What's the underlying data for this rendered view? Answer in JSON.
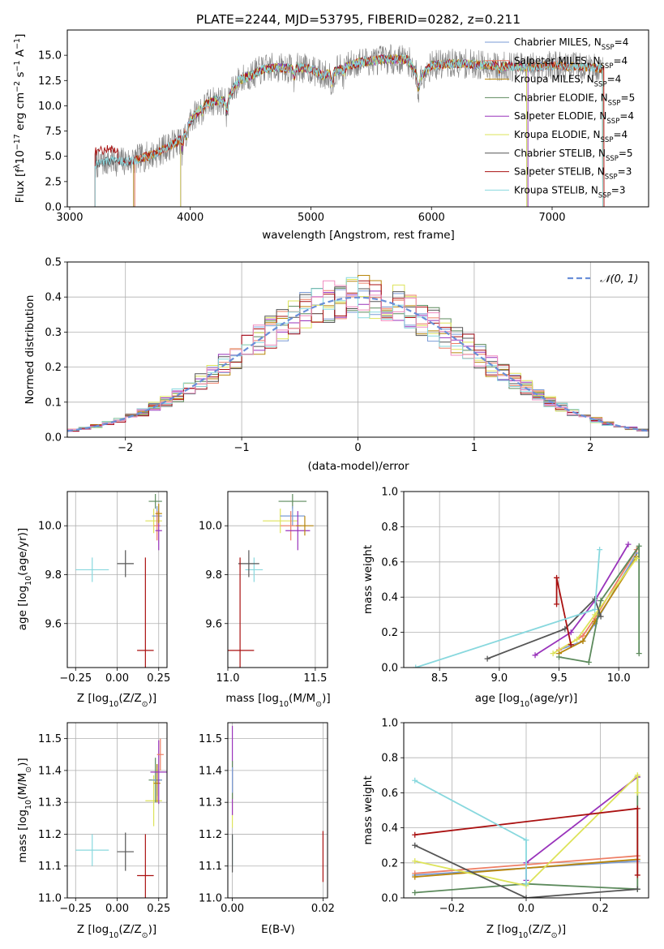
{
  "figure_title": "PLATE=2244, MJD=53795, FIBERID=0282, z=0.211",
  "models": [
    {
      "label": "Chabrier MILES, N",
      "n": "4",
      "color": "#7a9bd6"
    },
    {
      "label": "Salpeter MILES, N",
      "n": "4",
      "color": "#ee7f66"
    },
    {
      "label": "Kroupa MILES, N",
      "n": "4",
      "color": "#b8860b"
    },
    {
      "label": "Chabrier ELODIE, N",
      "n": "5",
      "color": "#5c8a5c"
    },
    {
      "label": "Salpeter ELODIE, N",
      "n": "4",
      "color": "#9933bb"
    },
    {
      "label": "Kroupa ELODIE, N",
      "n": "4",
      "color": "#dde35a"
    },
    {
      "label": "Chabrier STELIB, N",
      "n": "5",
      "color": "#555555"
    },
    {
      "label": "Salpeter STELIB, N",
      "n": "3",
      "color": "#aa1111"
    },
    {
      "label": "Kroupa STELIB, N",
      "n": "3",
      "color": "#88d8de"
    }
  ],
  "legend_subscript": "SSP",
  "chart_data": [
    {
      "type": "line",
      "xlabel": "wavelength [Angstrom, rest frame]",
      "ylabel": "Flux [f",
      "ylabel_parts": [
        "Flux [f",
        "λ",
        "10",
        "−17",
        " erg cm",
        "−2",
        " s",
        "−1",
        " A",
        "−1",
        "]"
      ],
      "xlim": [
        2980,
        7800
      ],
      "ylim": [
        0,
        17.5
      ],
      "xticks": [
        "3000",
        "4000",
        "5000",
        "6000",
        "7000"
      ],
      "yticks": [
        "0.0",
        "2.5",
        "5.0",
        "7.5",
        "10.0",
        "12.5",
        "15.0"
      ],
      "anchors_x": [
        3200,
        3300,
        3500,
        3700,
        3900,
        4000,
        4100,
        4200,
        4300,
        4400,
        4500,
        4600,
        4700,
        4800,
        4900,
        5000,
        5100,
        5200,
        5300,
        5400,
        5600,
        5800,
        5900,
        6000,
        6200,
        6500,
        6800,
        7000,
        7300,
        7600
      ],
      "anchors_y": [
        4.2,
        4.5,
        4.5,
        5.2,
        6.5,
        8.5,
        10.0,
        10.5,
        10.5,
        12.5,
        13.0,
        13.6,
        13.8,
        13.7,
        13.8,
        13.6,
        13.0,
        13.4,
        13.9,
        14.3,
        14.6,
        14.6,
        12.8,
        14.0,
        14.2,
        14.0,
        13.8,
        14.0,
        13.8,
        13.5
      ]
    },
    {
      "type": "line",
      "xlabel": "(data-model)/error",
      "ylabel": "Normed distribution",
      "xlim": [
        -2.5,
        2.5
      ],
      "ylim": [
        0,
        0.5
      ],
      "xticks": [
        "−2",
        "−1",
        "0",
        "1",
        "2"
      ],
      "yticks": [
        "0.0",
        "0.1",
        "0.2",
        "0.3",
        "0.4",
        "0.5"
      ],
      "legend": "𝒩(0, 1)",
      "bin_width": 0.1
    },
    {
      "type": "scatter",
      "xlabel": "Z [log",
      "xlabel_parts": [
        "Z [log",
        "10",
        "(Z/Z",
        "⊙",
        ")]"
      ],
      "ylabel_parts": [
        "age  [log",
        "10",
        "(age/yr)]"
      ],
      "xlim": [
        -0.3,
        0.3
      ],
      "ylim": [
        9.42,
        10.14
      ],
      "xticks": [
        "−0.25",
        "0.00",
        "0.25"
      ],
      "yticks": [
        "9.6",
        "9.8",
        "10.0"
      ],
      "points": [
        {
          "x": -0.15,
          "y": 9.82,
          "xe": 0.1,
          "ye": 0.05,
          "m": 8
        },
        {
          "x": 0.05,
          "y": 9.845,
          "xe": 0.05,
          "ye": 0.055,
          "m": 6
        },
        {
          "x": 0.17,
          "y": 9.49,
          "xe": 0.05,
          "ye": 0.38,
          "m": 7
        },
        {
          "x": 0.22,
          "y": 10.02,
          "xe": 0.05,
          "ye": 0.05,
          "m": 5
        },
        {
          "x": 0.23,
          "y": 10.1,
          "xe": 0.04,
          "ye": 0.03,
          "m": 3
        },
        {
          "x": 0.24,
          "y": 10.04,
          "xe": 0.03,
          "ye": 0.04,
          "m": 0
        },
        {
          "x": 0.24,
          "y": 10.0,
          "xe": 0.02,
          "ye": 0.06,
          "m": 1
        },
        {
          "x": 0.25,
          "y": 9.98,
          "xe": 0.02,
          "ye": 0.08,
          "m": 4
        },
        {
          "x": 0.25,
          "y": 10.05,
          "xe": 0.02,
          "ye": 0.04,
          "m": 2
        }
      ]
    },
    {
      "type": "scatter",
      "xlabel_parts": [
        "mass [log",
        "10",
        "(M/M",
        "⊙",
        ")]"
      ],
      "xlim": [
        11.0,
        11.57
      ],
      "ylim": [
        9.42,
        10.14
      ],
      "xticks": [
        "11.0",
        "11.5"
      ],
      "yticks": [
        "9.6",
        "9.8",
        "10.0"
      ],
      "points": [
        {
          "x": 11.15,
          "y": 9.82,
          "xe": 0.05,
          "ye": 0.05,
          "m": 8
        },
        {
          "x": 11.12,
          "y": 9.845,
          "xe": 0.06,
          "ye": 0.055,
          "m": 6
        },
        {
          "x": 11.07,
          "y": 9.49,
          "xe": 0.08,
          "ye": 0.38,
          "m": 7
        },
        {
          "x": 11.3,
          "y": 10.02,
          "xe": 0.1,
          "ye": 0.05,
          "m": 5
        },
        {
          "x": 11.37,
          "y": 10.1,
          "xe": 0.08,
          "ye": 0.03,
          "m": 3
        },
        {
          "x": 11.37,
          "y": 10.04,
          "xe": 0.07,
          "ye": 0.04,
          "m": 0
        },
        {
          "x": 11.36,
          "y": 10.0,
          "xe": 0.06,
          "ye": 0.06,
          "m": 1
        },
        {
          "x": 11.4,
          "y": 9.98,
          "xe": 0.07,
          "ye": 0.08,
          "m": 4
        },
        {
          "x": 11.44,
          "y": 10.0,
          "xe": 0.05,
          "ye": 0.04,
          "m": 2
        }
      ]
    },
    {
      "type": "line",
      "xlabel_parts": [
        "age  [log",
        "10",
        "(age/yr)]"
      ],
      "ylabel": "mass weight",
      "xlim": [
        8.2,
        10.25
      ],
      "ylim": [
        0,
        1.0
      ],
      "xticks": [
        "8.5",
        "9.0",
        "9.5",
        "10.0"
      ],
      "yticks": [
        "0.0",
        "0.2",
        "0.4",
        "0.6",
        "0.8",
        "1.0"
      ],
      "series": [
        {
          "m": 0,
          "x": [
            9.5,
            9.7,
            9.8,
            10.15
          ],
          "y": [
            0.1,
            0.15,
            0.25,
            0.65
          ]
        },
        {
          "m": 1,
          "x": [
            9.5,
            9.7,
            9.8,
            10.15
          ],
          "y": [
            0.1,
            0.18,
            0.28,
            0.67
          ]
        },
        {
          "m": 2,
          "x": [
            9.5,
            9.7,
            9.8,
            10.15
          ],
          "y": [
            0.08,
            0.15,
            0.26,
            0.63
          ]
        },
        {
          "m": 3,
          "x": [
            9.5,
            9.75,
            9.85,
            10.17,
            10.17
          ],
          "y": [
            0.06,
            0.03,
            0.38,
            0.69,
            0.08
          ]
        },
        {
          "m": 4,
          "x": [
            9.3,
            9.6,
            9.8,
            10.08
          ],
          "y": [
            0.07,
            0.2,
            0.38,
            0.7
          ]
        },
        {
          "m": 5,
          "x": [
            9.45,
            9.65,
            9.8,
            10.15
          ],
          "y": [
            0.08,
            0.16,
            0.3,
            0.62
          ]
        },
        {
          "m": 6,
          "x": [
            8.9,
            9.55,
            9.8,
            9.85
          ],
          "y": [
            0.05,
            0.22,
            0.39,
            0.29
          ]
        },
        {
          "m": 7,
          "x": [
            9.48,
            9.48,
            9.6
          ],
          "y": [
            0.36,
            0.51,
            0.13
          ]
        },
        {
          "m": 8,
          "x": [
            8.3,
            9.8,
            9.84
          ],
          "y": [
            0.0,
            0.33,
            0.67
          ]
        }
      ]
    },
    {
      "type": "scatter",
      "xlabel_parts": [
        "Z [log",
        "10",
        "(Z/Z",
        "⊙",
        ")]"
      ],
      "ylabel_parts": [
        "mass [log",
        "10",
        "(M/M",
        "⊙",
        ")]"
      ],
      "xlim": [
        -0.3,
        0.3
      ],
      "ylim": [
        11.0,
        11.55
      ],
      "xticks": [
        "−0.25",
        "0.00",
        "0.25"
      ],
      "yticks": [
        "11.0",
        "11.1",
        "11.2",
        "11.3",
        "11.4",
        "11.5"
      ],
      "points": [
        {
          "x": -0.15,
          "y": 11.15,
          "xe": 0.1,
          "ye": 0.05,
          "m": 8
        },
        {
          "x": 0.05,
          "y": 11.145,
          "xe": 0.05,
          "ye": 0.06,
          "m": 6
        },
        {
          "x": 0.17,
          "y": 11.07,
          "xe": 0.05,
          "ye": 0.13,
          "m": 7
        },
        {
          "x": 0.22,
          "y": 11.305,
          "xe": 0.05,
          "ye": 0.08,
          "m": 5
        },
        {
          "x": 0.23,
          "y": 11.37,
          "xe": 0.04,
          "ye": 0.07,
          "m": 3
        },
        {
          "x": 0.24,
          "y": 11.37,
          "xe": 0.03,
          "ye": 0.05,
          "m": 0
        },
        {
          "x": 0.24,
          "y": 11.36,
          "xe": 0.02,
          "ye": 0.06,
          "m": 2
        },
        {
          "x": 0.25,
          "y": 11.395,
          "xe": 0.05,
          "ye": 0.1,
          "m": 4
        },
        {
          "x": 0.26,
          "y": 11.45,
          "xe": 0.02,
          "ye": 0.05,
          "m": 1
        }
      ]
    },
    {
      "type": "scatter",
      "xlabel": "E(B-V)",
      "xlim": [
        -0.001,
        0.021
      ],
      "ylim": [
        11.0,
        11.55
      ],
      "xticks": [
        "0.00",
        "0.02"
      ],
      "yticks": [
        "11.0",
        "11.1",
        "11.2",
        "11.3",
        "11.4",
        "11.5"
      ],
      "points": [
        {
          "x": 0.0,
          "y": 11.15,
          "xe": 0,
          "ye": 0.05,
          "m": 8
        },
        {
          "x": 0.0,
          "y": 11.14,
          "xe": 0,
          "ye": 0.06,
          "m": 6
        },
        {
          "x": 0.0,
          "y": 11.3,
          "xe": 0,
          "ye": 0.08,
          "m": 5
        },
        {
          "x": 0.0,
          "y": 11.4,
          "xe": 0,
          "ye": 0.14,
          "m": 4
        },
        {
          "x": 0.0,
          "y": 11.37,
          "xe": 0,
          "ye": 0.06,
          "m": 3
        },
        {
          "x": 0.0,
          "y": 11.37,
          "xe": 0,
          "ye": 0.04,
          "m": 0
        },
        {
          "x": 0.02,
          "y": 11.13,
          "xe": 0,
          "ye": 0.08,
          "m": 7
        }
      ]
    },
    {
      "type": "line",
      "xlabel_parts": [
        "Z [log",
        "10",
        "(Z/Z",
        "⊙",
        ")]"
      ],
      "ylabel": "mass weight",
      "xlim": [
        -0.33,
        0.33
      ],
      "ylim": [
        0,
        1.0
      ],
      "xticks": [
        "−0.2",
        "0.0",
        "0.2"
      ],
      "yticks": [
        "0.0",
        "0.2",
        "0.4",
        "0.6",
        "0.8",
        "1.0"
      ],
      "series": [
        {
          "m": 0,
          "x": [
            -0.3,
            0.3
          ],
          "y": [
            0.13,
            0.21
          ]
        },
        {
          "m": 1,
          "x": [
            -0.3,
            0.3
          ],
          "y": [
            0.14,
            0.24
          ]
        },
        {
          "m": 2,
          "x": [
            -0.3,
            0.3
          ],
          "y": [
            0.12,
            0.22
          ]
        },
        {
          "m": 3,
          "x": [
            -0.3,
            0.0,
            0.3,
            0.3
          ],
          "y": [
            0.03,
            0.08,
            0.05,
            0.69
          ]
        },
        {
          "m": 4,
          "x": [
            0.0,
            0.0,
            0.3
          ],
          "y": [
            0.1,
            0.2,
            0.69
          ]
        },
        {
          "m": 5,
          "x": [
            -0.3,
            0.0,
            0.3,
            0.3
          ],
          "y": [
            0.21,
            0.07,
            0.7,
            0.6
          ]
        },
        {
          "m": 6,
          "x": [
            -0.3,
            0.0,
            0.3
          ],
          "y": [
            0.3,
            0.0,
            0.05
          ]
        },
        {
          "m": 7,
          "x": [
            -0.3,
            0.3,
            0.3
          ],
          "y": [
            0.36,
            0.51,
            0.13
          ]
        },
        {
          "m": 8,
          "x": [
            -0.3,
            0.0,
            0.0
          ],
          "y": [
            0.67,
            0.33,
            0.08
          ]
        }
      ]
    }
  ]
}
